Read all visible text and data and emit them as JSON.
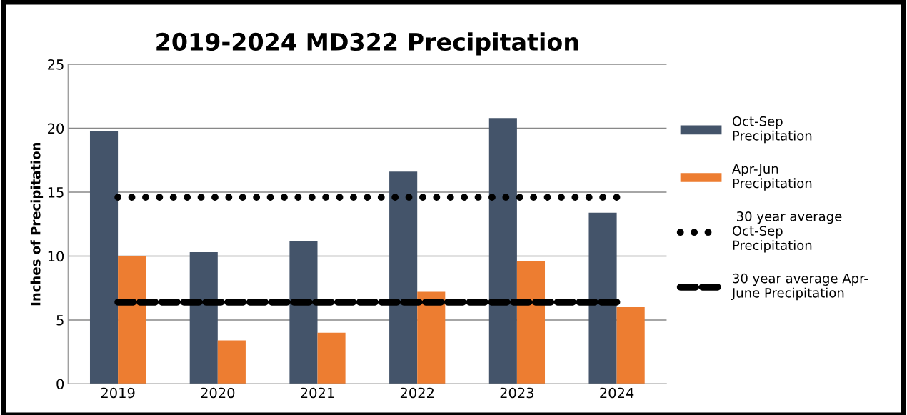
{
  "chart_data": {
    "type": "bar",
    "title": "2019-2024 MD322 Precipitation",
    "ylabel": "Inches of Precipitation",
    "categories": [
      "2019",
      "2020",
      "2021",
      "2022",
      "2023",
      "2024"
    ],
    "series": [
      {
        "name": "Oct-Sep\nPrecipitation",
        "color": "#44546a",
        "values": [
          19.8,
          10.3,
          11.2,
          16.6,
          20.8,
          13.4
        ]
      },
      {
        "name": "Apr-Jun\nPrecipitation",
        "color": "#ed7d31",
        "values": [
          10.0,
          3.4,
          4.0,
          7.2,
          9.6,
          6.0
        ]
      },
      {
        "name": " 30 year average\nOct-Sep\nPrecipitation",
        "type": "line",
        "color": "#000000",
        "line_style": "dotted",
        "values": [
          14.6,
          14.6,
          14.6,
          14.6,
          14.6,
          14.6
        ]
      },
      {
        "name": "30 year average Apr-\nJune Precipitation",
        "type": "line",
        "color": "#000000",
        "line_style": "dashed",
        "values": [
          6.4,
          6.4,
          6.4,
          6.4,
          6.4,
          6.4
        ]
      }
    ],
    "ylim": [
      0,
      25
    ],
    "yticks": [
      0,
      5,
      10,
      15,
      20,
      25
    ],
    "grid": "y",
    "legend": "right"
  }
}
